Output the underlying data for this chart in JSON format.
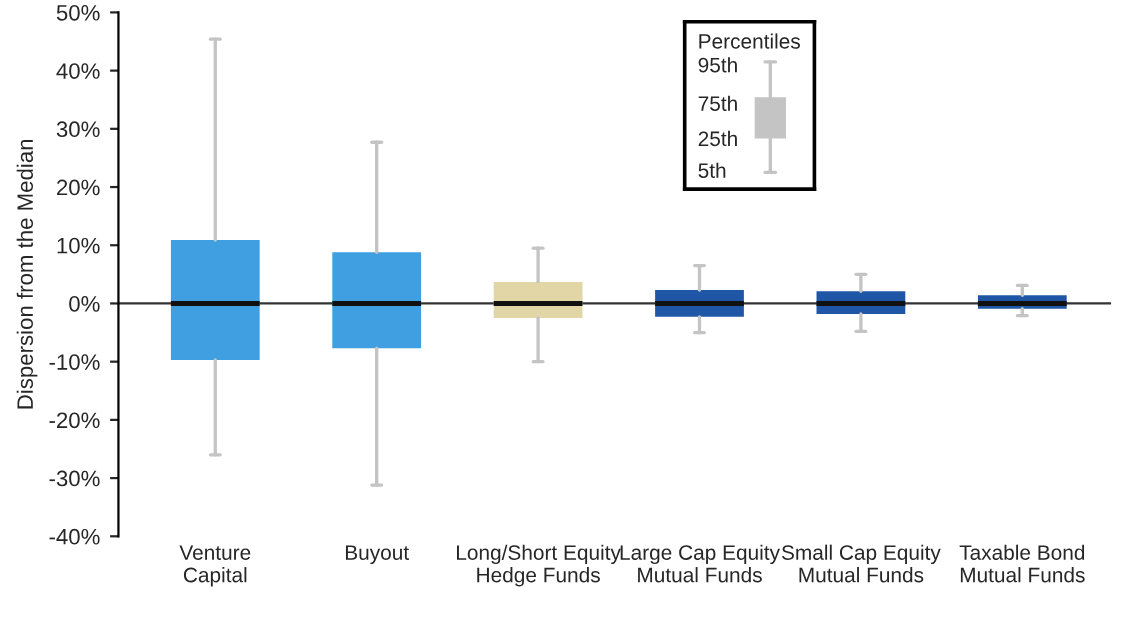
{
  "chart_data": {
    "type": "box",
    "ylabel": "Dispersion from the Median",
    "categories": [
      "Venture\nCapital",
      "Buyout",
      "Long/Short Equity\nHedge Funds",
      "Large Cap Equity\nMutual Funds",
      "Small Cap Equity\nMutual Funds",
      "Taxable Bond\nMutual Funds"
    ],
    "boxes": [
      {
        "low": -26,
        "q1": -9.7,
        "median": 0,
        "q3": 10.9,
        "high": 45.4
      },
      {
        "low": -31.2,
        "q1": -7.7,
        "median": 0,
        "q3": 8.8,
        "high": 27.7
      },
      {
        "low": -10,
        "q1": -2.5,
        "median": 0,
        "q3": 3.7,
        "high": 9.5
      },
      {
        "low": -5,
        "q1": -2.3,
        "median": 0,
        "q3": 2.3,
        "high": 6.5
      },
      {
        "low": -4.8,
        "q1": -1.8,
        "median": 0,
        "q3": 2.1,
        "high": 5
      },
      {
        "low": -2.1,
        "q1": -0.9,
        "median": 0,
        "q3": 1.4,
        "high": 3.1
      }
    ],
    "colors": [
      "#3f9fe0",
      "#3f9fe0",
      "#e2d6a6",
      "#1f57a6",
      "#1f57a6",
      "#1f57a6"
    ],
    "ylim": [
      -40,
      50
    ],
    "yticks": [
      {
        "value": -40,
        "label": "-40%"
      },
      {
        "value": -30,
        "label": "-30%"
      },
      {
        "value": -20,
        "label": "-20%"
      },
      {
        "value": -10,
        "label": "-10%"
      },
      {
        "value": 0,
        "label": "0%"
      },
      {
        "value": 10,
        "label": "10%"
      },
      {
        "value": 20,
        "label": "20%"
      },
      {
        "value": 30,
        "label": "30%"
      },
      {
        "value": 40,
        "label": "40%"
      },
      {
        "value": 50,
        "label": "50%"
      }
    ],
    "ref_lines": [
      {
        "axis": "y",
        "value": 0,
        "color": "#333333"
      }
    ],
    "legend_title": "Percentiles",
    "annotations": [
      "95th",
      "75th",
      "25th",
      "5th"
    ],
    "grid": false
  }
}
